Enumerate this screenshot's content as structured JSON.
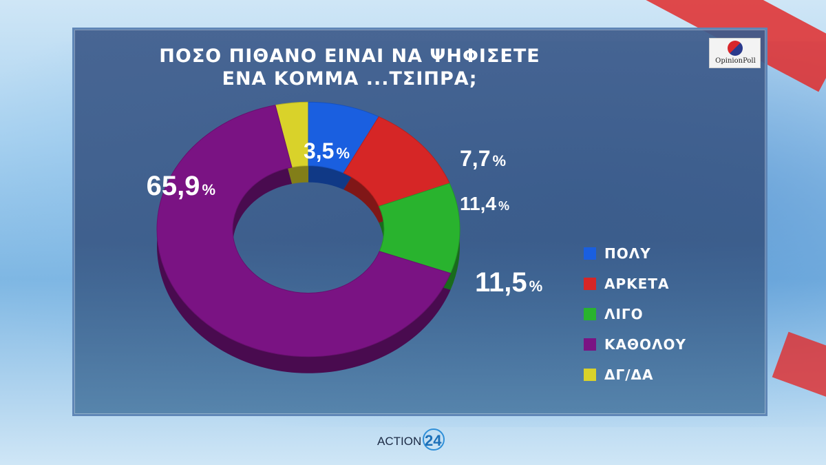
{
  "title": {
    "line1": "ΠΟΣΟ ΠΙΘΑΝΟ ΕΙΝΑΙ ΝΑ ΨΗΦΙΣΕΤΕ",
    "line2": "ΕΝΑ ΚΟΜΜΑ ...ΤΣΙΠΡΑ;"
  },
  "logo": {
    "text": "OpinionPoll"
  },
  "footer": {
    "brand": "ACTION",
    "number": "24"
  },
  "colors": {
    "ΠΟΛΥ": "#1a5fe0",
    "ΑΡΚΕΤΑ": "#d62626",
    "ΛΙΓΟ": "#29b32e",
    "ΚΑΘΟΛΟΥ": "#7a1383",
    "ΔΓ/ΔΑ": "#d9d22a"
  },
  "chart_data": {
    "type": "pie",
    "title": "ΠΟΣΟ ΠΙΘΑΝΟ ΕΙΝΑΙ ΝΑ ΨΗΦΙΣΕΤΕ ΕΝΑ ΚΟΜΜΑ ...ΤΣΙΠΡΑ;",
    "categories": [
      "ΠΟΛΥ",
      "ΑΡΚΕΤΑ",
      "ΛΙΓΟ",
      "ΚΑΘΟΛΟΥ",
      "ΔΓ/ΔΑ"
    ],
    "values": [
      7.7,
      11.4,
      11.5,
      65.9,
      3.5
    ],
    "labels": [
      "7,7",
      "11,4",
      "11,5",
      "65,9",
      "3,5"
    ],
    "unit": "%",
    "legend_position": "right",
    "donut": true
  }
}
